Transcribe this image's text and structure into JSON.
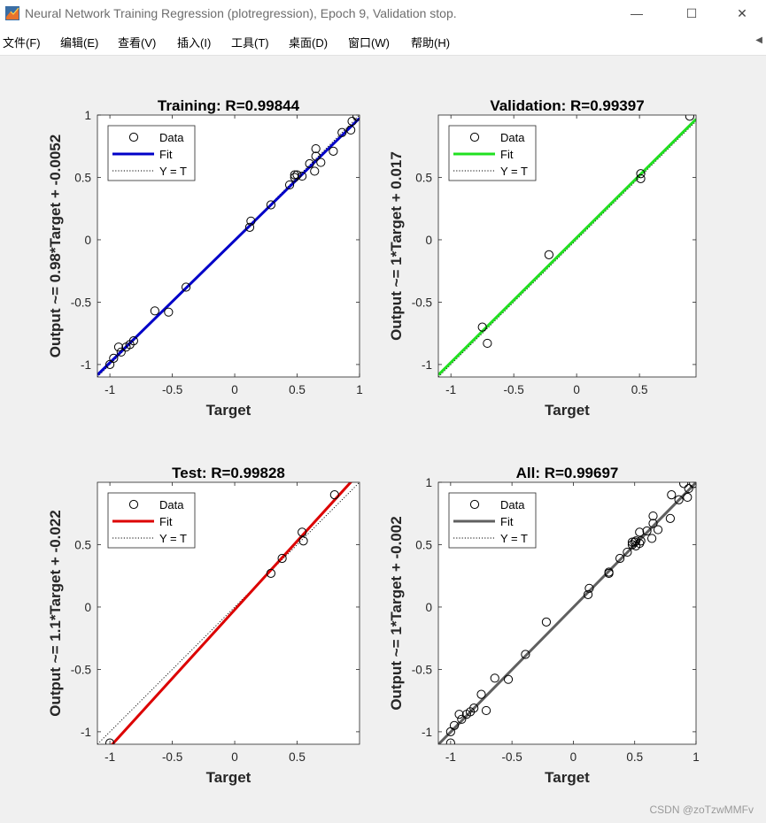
{
  "window": {
    "title": "Neural Network Training Regression (plotregression), Epoch 9, Validation stop.",
    "minimize": "—",
    "maximize": "☐",
    "close": "✕"
  },
  "menu": [
    {
      "label": "文件(F)"
    },
    {
      "label": "编辑(E)"
    },
    {
      "label": "查看(V)"
    },
    {
      "label": "插入(I)"
    },
    {
      "label": "工具(T)"
    },
    {
      "label": "桌面(D)"
    },
    {
      "label": "窗口(W)"
    },
    {
      "label": "帮助(H)"
    }
  ],
  "watermark": "CSDN @zoTzwMMFv",
  "chart_data": [
    {
      "type": "scatter",
      "title": "Training: R=0.99844",
      "xlabel": "Target",
      "ylabel": "Output ~= 0.98*Target + -0.0052",
      "xlim": [
        -1.1,
        1.0
      ],
      "ylim": [
        -1.1,
        1.0
      ],
      "xticks": [
        -1,
        -0.5,
        0,
        0.5,
        1
      ],
      "yticks": [
        -1,
        -0.5,
        0,
        0.5,
        1
      ],
      "fit": {
        "slope": 0.98,
        "intercept": -0.0052,
        "color": "#0000c8"
      },
      "legend": [
        "Data",
        "Fit",
        "Y = T"
      ],
      "legend_position": "top-left",
      "points": [
        [
          -1.0,
          -1.0
        ],
        [
          -0.97,
          -0.95
        ],
        [
          -0.93,
          -0.86
        ],
        [
          -0.91,
          -0.9
        ],
        [
          -0.87,
          -0.86
        ],
        [
          -0.84,
          -0.84
        ],
        [
          -0.81,
          -0.81
        ],
        [
          -0.64,
          -0.57
        ],
        [
          -0.53,
          -0.58
        ],
        [
          -0.39,
          -0.38
        ],
        [
          0.12,
          0.1
        ],
        [
          0.13,
          0.15
        ],
        [
          0.29,
          0.28
        ],
        [
          0.44,
          0.44
        ],
        [
          0.48,
          0.5
        ],
        [
          0.48,
          0.52
        ],
        [
          0.5,
          0.52
        ],
        [
          0.54,
          0.51
        ],
        [
          0.6,
          0.61
        ],
        [
          0.64,
          0.55
        ],
        [
          0.65,
          0.67
        ],
        [
          0.65,
          0.73
        ],
        [
          0.69,
          0.62
        ],
        [
          0.79,
          0.71
        ],
        [
          0.86,
          0.86
        ],
        [
          0.93,
          0.88
        ],
        [
          0.94,
          0.95
        ],
        [
          0.98,
          0.99
        ]
      ]
    },
    {
      "type": "scatter",
      "title": "Validation: R=0.99397",
      "xlabel": "Target",
      "ylabel": "Output ~= 1*Target + 0.017",
      "xlim": [
        -1.1,
        0.95
      ],
      "ylim": [
        -1.1,
        1.0
      ],
      "xticks": [
        -1,
        -0.5,
        0,
        0.5
      ],
      "yticks": [
        -1,
        -0.5,
        0,
        0.5
      ],
      "fit": {
        "slope": 1.0,
        "intercept": 0.017,
        "color": "#20e020"
      },
      "legend": [
        "Data",
        "Fit",
        "Y = T"
      ],
      "legend_position": "top-left",
      "points": [
        [
          -0.75,
          -0.7
        ],
        [
          -0.71,
          -0.83
        ],
        [
          -0.22,
          -0.12
        ],
        [
          0.51,
          0.49
        ],
        [
          0.51,
          0.53
        ],
        [
          0.9,
          0.99
        ]
      ]
    },
    {
      "type": "scatter",
      "title": "Test: R=0.99828",
      "xlabel": "Target",
      "ylabel": "Output ~= 1.1*Target + -0.022",
      "xlim": [
        -1.1,
        1.0
      ],
      "ylim": [
        -1.1,
        1.0
      ],
      "xticks": [
        -1,
        -0.5,
        0,
        0.5
      ],
      "yticks": [
        -1,
        -0.5,
        0,
        0.5
      ],
      "fit": {
        "slope": 1.1,
        "intercept": -0.022,
        "color": "#dc0000"
      },
      "legend": [
        "Data",
        "Fit",
        "Y = T"
      ],
      "legend_position": "top-left",
      "points": [
        [
          -1.0,
          -1.09
        ],
        [
          0.29,
          0.27
        ],
        [
          0.38,
          0.39
        ],
        [
          0.54,
          0.6
        ],
        [
          0.55,
          0.53
        ],
        [
          0.8,
          0.9
        ]
      ]
    },
    {
      "type": "scatter",
      "title": "All: R=0.99697",
      "xlabel": "Target",
      "ylabel": "Output ~= 1*Target + -0.002",
      "xlim": [
        -1.1,
        1.0
      ],
      "ylim": [
        -1.1,
        1.0
      ],
      "xticks": [
        -1,
        -0.5,
        0,
        0.5,
        1
      ],
      "yticks": [
        -1,
        -0.5,
        0,
        0.5,
        1
      ],
      "fit": {
        "slope": 1.0,
        "intercept": -0.002,
        "color": "#606060"
      },
      "legend": [
        "Data",
        "Fit",
        "Y = T"
      ],
      "legend_position": "top-left",
      "points": [
        [
          -1.0,
          -1.0
        ],
        [
          -1.0,
          -1.09
        ],
        [
          -0.97,
          -0.95
        ],
        [
          -0.93,
          -0.86
        ],
        [
          -0.91,
          -0.9
        ],
        [
          -0.87,
          -0.86
        ],
        [
          -0.84,
          -0.84
        ],
        [
          -0.81,
          -0.81
        ],
        [
          -0.75,
          -0.7
        ],
        [
          -0.71,
          -0.83
        ],
        [
          -0.64,
          -0.57
        ],
        [
          -0.53,
          -0.58
        ],
        [
          -0.39,
          -0.38
        ],
        [
          -0.22,
          -0.12
        ],
        [
          0.12,
          0.1
        ],
        [
          0.13,
          0.15
        ],
        [
          0.29,
          0.28
        ],
        [
          0.29,
          0.27
        ],
        [
          0.38,
          0.39
        ],
        [
          0.44,
          0.44
        ],
        [
          0.48,
          0.5
        ],
        [
          0.48,
          0.52
        ],
        [
          0.5,
          0.52
        ],
        [
          0.51,
          0.49
        ],
        [
          0.51,
          0.53
        ],
        [
          0.54,
          0.51
        ],
        [
          0.54,
          0.6
        ],
        [
          0.55,
          0.53
        ],
        [
          0.6,
          0.61
        ],
        [
          0.64,
          0.55
        ],
        [
          0.65,
          0.67
        ],
        [
          0.65,
          0.73
        ],
        [
          0.69,
          0.62
        ],
        [
          0.79,
          0.71
        ],
        [
          0.8,
          0.9
        ],
        [
          0.86,
          0.86
        ],
        [
          0.9,
          0.99
        ],
        [
          0.93,
          0.88
        ],
        [
          0.94,
          0.95
        ],
        [
          0.98,
          0.99
        ]
      ]
    }
  ]
}
